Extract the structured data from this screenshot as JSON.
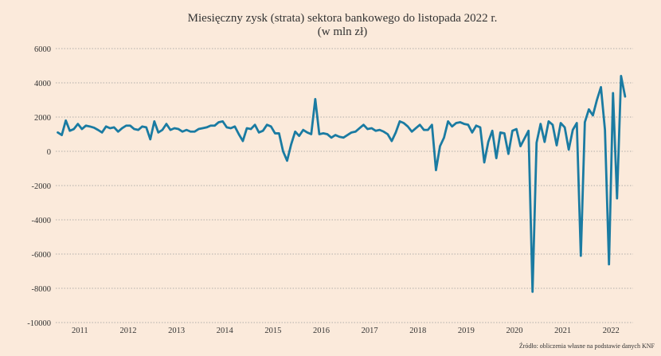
{
  "chart_data": {
    "type": "line",
    "title": "Miesięczny zysk (strata) sektora bankowego do listopada 2022 r.",
    "subtitle": "(w mln zł)",
    "xlabel": "",
    "ylabel": "",
    "source": "Źródło: obliczenia własne na podstawie danych KNF",
    "ylim": [
      -10000,
      6000
    ],
    "yticks": [
      6000,
      4000,
      2000,
      0,
      -2000,
      -4000,
      -6000,
      -8000,
      -10000
    ],
    "xticks": [
      "2011",
      "2012",
      "2013",
      "2014",
      "2015",
      "2016",
      "2017",
      "2018",
      "2019",
      "2020",
      "2021",
      "2022"
    ],
    "x_start": "2011-01",
    "x_end": "2022-11",
    "grid": true,
    "colors": {
      "line": "#1a7ba2",
      "background": "#fbeadb",
      "grid": "#9b9b9b",
      "text": "#333333"
    },
    "series": [
      {
        "values": [
          1100,
          950,
          1800,
          1200,
          1300,
          1600,
          1300,
          1500,
          1450,
          1380,
          1250,
          1100,
          1450,
          1350,
          1400,
          1150,
          1350,
          1500,
          1500,
          1300,
          1250,
          1450,
          1400,
          700,
          1750,
          1100,
          1250,
          1600,
          1250,
          1350,
          1300,
          1150,
          1250,
          1150,
          1150,
          1300,
          1350,
          1400,
          1500,
          1500,
          1700,
          1750,
          1400,
          1350,
          1450,
          1000,
          600,
          1350,
          1300,
          1550,
          1100,
          1200,
          1550,
          1450,
          1050,
          1050,
          0,
          -550,
          400,
          1150,
          900,
          1250,
          1100,
          1000,
          3050,
          1000,
          1050,
          1000,
          800,
          950,
          850,
          800,
          950,
          1100,
          1150,
          1350,
          1550,
          1300,
          1350,
          1200,
          1250,
          1150,
          1000,
          600,
          1100,
          1750,
          1650,
          1450,
          1150,
          1350,
          1550,
          1250,
          1250,
          1550,
          -1100,
          300,
          800,
          1750,
          1450,
          1650,
          1700,
          1600,
          1550,
          1100,
          1500,
          1400,
          -650,
          550,
          1200,
          -400,
          1100,
          1050,
          -150,
          1200,
          1300,
          300,
          750,
          1200,
          -8200,
          500,
          1600,
          550,
          1750,
          1550,
          350,
          1650,
          1400,
          100,
          1250,
          1650,
          -6100,
          1700,
          2450,
          2100,
          3000,
          3750,
          1250,
          -6600,
          3400,
          -2750,
          4400,
          3200
        ]
      }
    ]
  }
}
